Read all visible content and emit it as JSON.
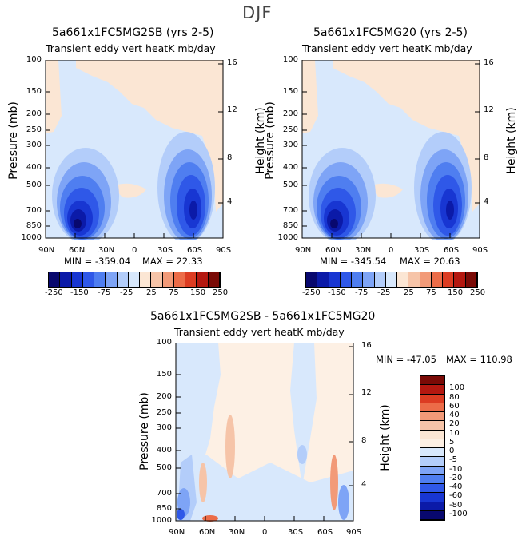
{
  "figure_title": "DJF",
  "units_label": "Transient eddy vert heatK mb/day",
  "y_label_left": "Pressure (mb)",
  "y_label_right": "Height (km)",
  "chart_data": [
    {
      "type": "heatmap",
      "title": "5a661x1FC5MG2SB (yrs 2-5)",
      "subtitle": "Transient eddy vert heatK mb/day",
      "x_ticks": [
        "90N",
        "60N",
        "30N",
        "0",
        "30S",
        "60S",
        "90S"
      ],
      "y_ticks": [
        "100",
        "150",
        "200",
        "250",
        "300",
        "400",
        "500",
        "700",
        "850",
        "1000"
      ],
      "height_ticks": [
        "16",
        "12",
        "8",
        "4"
      ],
      "min_label": "MIN = -359.04",
      "max_label": "MAX = 22.33",
      "min": -359.04,
      "max": 22.33,
      "colorbar_labels": [
        "-250",
        "-150",
        "-75",
        "-25",
        "25",
        "75",
        "150",
        "250"
      ]
    },
    {
      "type": "heatmap",
      "title": "5a661x1FC5MG20 (yrs 2-5)",
      "subtitle": "Transient eddy vert heatK mb/day",
      "x_ticks": [
        "90N",
        "60N",
        "30N",
        "0",
        "30S",
        "60S",
        "90S"
      ],
      "y_ticks": [
        "100",
        "150",
        "200",
        "250",
        "300",
        "400",
        "500",
        "700",
        "850",
        "1000"
      ],
      "height_ticks": [
        "16",
        "12",
        "8",
        "4"
      ],
      "min_label": "MIN = -345.54",
      "max_label": "MAX = 20.63",
      "min": -345.54,
      "max": 20.63,
      "colorbar_labels": [
        "-250",
        "-150",
        "-75",
        "-25",
        "25",
        "75",
        "150",
        "250"
      ]
    },
    {
      "type": "heatmap",
      "title": "5a661x1FC5MG2SB - 5a661x1FC5MG20",
      "subtitle": "Transient eddy vert heatK mb/day",
      "x_ticks": [
        "90N",
        "60N",
        "30N",
        "0",
        "30S",
        "60S",
        "90S"
      ],
      "y_ticks": [
        "100",
        "150",
        "200",
        "250",
        "300",
        "400",
        "500",
        "700",
        "850",
        "1000"
      ],
      "height_ticks": [
        "16",
        "12",
        "8",
        "4"
      ],
      "min_label": "MIN = -47.05",
      "max_label": "MAX = 110.98",
      "min": -47.05,
      "max": 110.98,
      "colorbar_labels": [
        "100",
        "80",
        "60",
        "40",
        "20",
        "10",
        "5",
        "0",
        "-5",
        "-10",
        "-20",
        "-40",
        "-60",
        "-80",
        "-100"
      ]
    }
  ],
  "colors": {
    "abs_scale": [
      "#08086e",
      "#0b1aa8",
      "#1836d2",
      "#2f58e8",
      "#4f7ef0",
      "#7ea4f6",
      "#b3cdfa",
      "#d8e8fc",
      "#fbe6d4",
      "#f6c4a8",
      "#f29a78",
      "#ec6c48",
      "#dc3c22",
      "#b41810",
      "#7a0a06"
    ],
    "diff_scale": [
      "#7a0a06",
      "#b41810",
      "#dc3c22",
      "#ec6c48",
      "#f29a78",
      "#f6c4a8",
      "#fbe6d4",
      "#fdf0e4",
      "#d8e8fc",
      "#b3cdfa",
      "#7ea4f6",
      "#4f7ef0",
      "#2f58e8",
      "#1836d2",
      "#0b1aa8",
      "#08086e"
    ]
  }
}
